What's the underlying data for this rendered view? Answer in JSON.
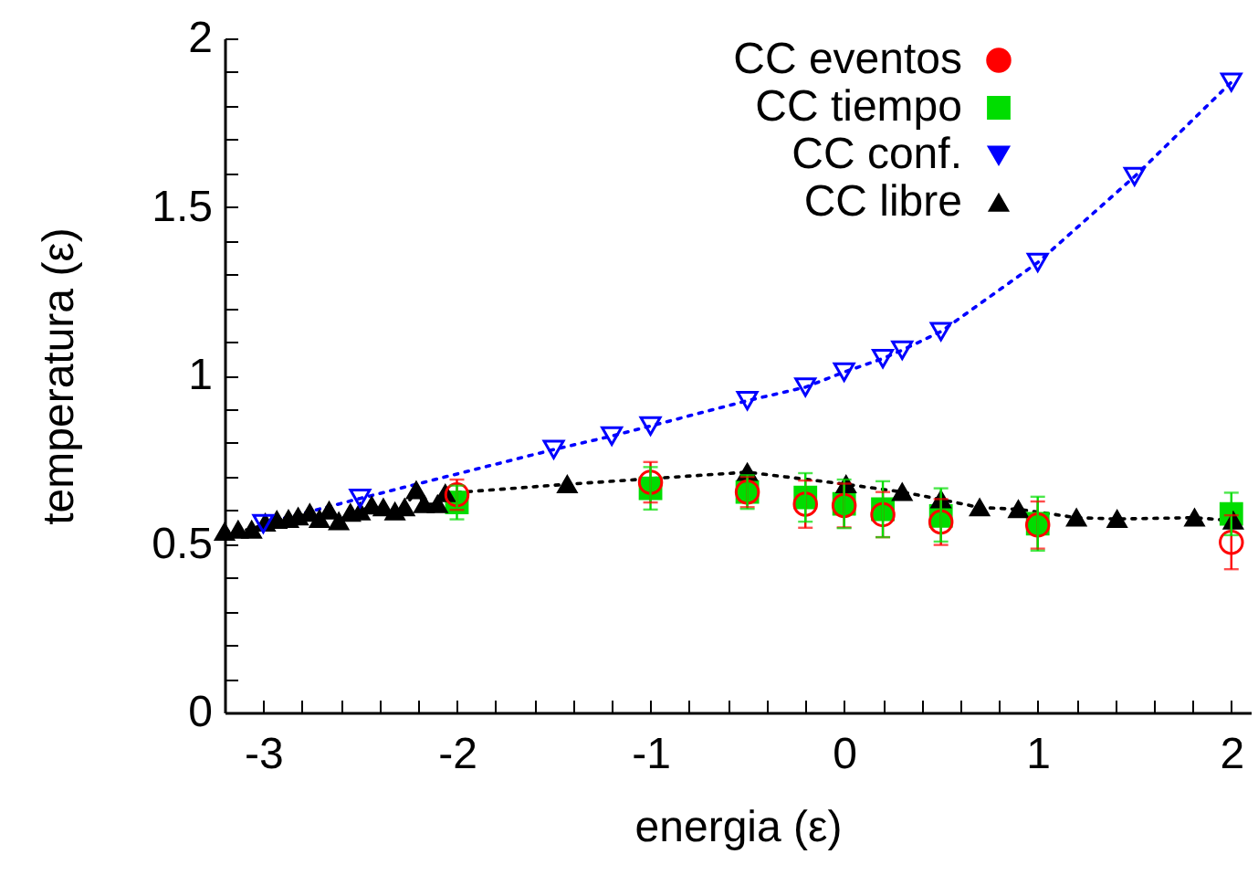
{
  "chart_data": {
    "type": "scatter",
    "xlabel": "energia (ε)",
    "ylabel": "temperatura (ε)",
    "xlim": [
      -3.2,
      2.1
    ],
    "ylim": [
      0,
      2
    ],
    "xticks": [
      -3,
      {
        "value": -2.8,
        "label": null
      },
      {
        "value": -2.6,
        "label": null
      },
      {
        "value": -2.4,
        "label": null
      },
      {
        "value": -2.2,
        "label": null
      },
      -2,
      {
        "value": -1.8,
        "label": null
      },
      {
        "value": -1.6,
        "label": null
      },
      {
        "value": -1.4,
        "label": null
      },
      {
        "value": -1.2,
        "label": null
      },
      -1,
      {
        "value": -0.8,
        "label": null
      },
      {
        "value": -0.6,
        "label": null
      },
      {
        "value": -0.4,
        "label": null
      },
      {
        "value": -0.2,
        "label": null
      },
      0,
      {
        "value": 0.2,
        "label": null
      },
      {
        "value": 0.4,
        "label": null
      },
      {
        "value": 0.6,
        "label": null
      },
      {
        "value": 0.8,
        "label": null
      },
      1,
      {
        "value": 1.2,
        "label": null
      },
      {
        "value": 1.4,
        "label": null
      },
      {
        "value": 1.6,
        "label": null
      },
      {
        "value": 1.8,
        "label": null
      },
      2
    ],
    "yticks": [
      0,
      {
        "value": 0.1,
        "label": null
      },
      {
        "value": 0.2,
        "label": null
      },
      {
        "value": 0.3,
        "label": null
      },
      {
        "value": 0.4,
        "label": null
      },
      0.5,
      {
        "value": 0.6,
        "label": null
      },
      {
        "value": 0.7,
        "label": null
      },
      {
        "value": 0.8,
        "label": null
      },
      {
        "value": 0.9,
        "label": null
      },
      1,
      {
        "value": 1.1,
        "label": null
      },
      {
        "value": 1.2,
        "label": null
      },
      {
        "value": 1.3,
        "label": null
      },
      {
        "value": 1.4,
        "label": null
      },
      1.5,
      {
        "value": 1.6,
        "label": null
      },
      {
        "value": 1.7,
        "label": null
      },
      {
        "value": 1.8,
        "label": null
      },
      {
        "value": 1.9,
        "label": null
      },
      2
    ],
    "grid": false,
    "legend": "top right",
    "series": [
      {
        "name": "CC eventos",
        "type": "scatter",
        "marker": "circle",
        "color": "#ff0000",
        "x": [
          -2,
          -1,
          -0.5,
          -0.2,
          0,
          0.2,
          0.5,
          1,
          2
        ],
        "values": [
          0.646,
          0.683,
          0.654,
          0.618,
          0.614,
          0.587,
          0.565,
          0.556,
          0.505
        ],
        "errors": [
          0.045,
          0.06,
          0.045,
          0.07,
          0.065,
          0.067,
          0.068,
          0.07,
          0.08
        ]
      },
      {
        "name": "CC tiempo",
        "type": "scatter",
        "marker": "square",
        "color": "#00dd00",
        "x": [
          -2,
          -1,
          -0.5,
          -0.2,
          0,
          0.2,
          0.5,
          1,
          2
        ],
        "values": [
          0.623,
          0.665,
          0.654,
          0.638,
          0.619,
          0.603,
          0.583,
          0.56,
          0.589
        ],
        "errors": [
          0.05,
          0.063,
          0.05,
          0.072,
          0.072,
          0.083,
          [
            0.507,
            0.665
          ],
          0.08,
          0.063
        ]
      },
      {
        "name": "CC conf.",
        "type": "line",
        "marker": "triangle-down",
        "line_style": "dotted",
        "color": "#0000ff",
        "x": [
          -3,
          -2.5,
          -1.5,
          -1.2,
          -1,
          -0.5,
          -0.2,
          0,
          0.2,
          0.3,
          0.5,
          1,
          1.5,
          2
        ],
        "values": [
          0.56,
          0.635,
          0.78,
          0.82,
          0.85,
          0.925,
          0.965,
          1.01,
          1.05,
          1.075,
          1.13,
          1.335,
          1.59,
          1.87
        ]
      },
      {
        "name": "CC libre",
        "type": "line",
        "marker": "triangle",
        "line_style": "dotted",
        "color": "#000000",
        "x": [
          -3.2,
          -3.13,
          -3.06,
          -2.99,
          -2.93,
          -2.87,
          -2.82,
          -2.76,
          -2.71,
          -2.66,
          -2.61,
          -2.55,
          -2.5,
          -2.44,
          -2.38,
          -2.32,
          -2.27,
          -2.21,
          -2.17,
          -2.1,
          -2.06,
          -1.43,
          -0.5,
          0.01,
          0.3,
          0.5,
          0.7,
          0.9,
          1.2,
          1.41,
          1.81,
          2.01
        ],
        "values": [
          0.536,
          0.542,
          0.542,
          0.563,
          0.571,
          0.574,
          0.581,
          0.592,
          0.574,
          0.599,
          0.567,
          0.592,
          0.596,
          0.614,
          0.608,
          0.596,
          0.608,
          0.659,
          0.618,
          0.618,
          0.65,
          0.677,
          0.713,
          0.677,
          0.654,
          0.632,
          0.608,
          0.603,
          0.578,
          0.574,
          0.578,
          0.569
        ]
      }
    ]
  }
}
